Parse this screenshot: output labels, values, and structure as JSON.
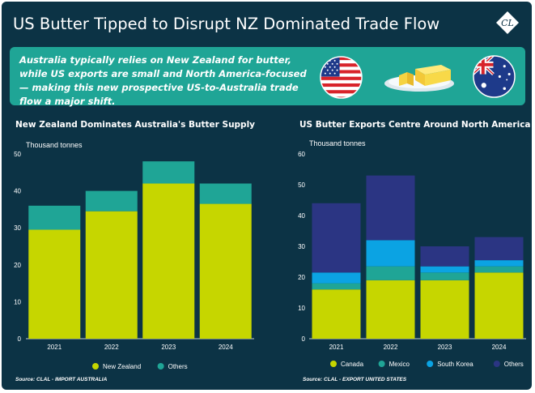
{
  "title": "US Butter Tipped to Disrupt NZ Dominated Trade Flow",
  "logo_text": "CL",
  "banner": {
    "text": "Australia typically relies on New Zealand for butter, while US exports are small and North America-focused — making this new prospective US-to-Australia trade flow a major shift.",
    "icons": [
      "us-flag-icon",
      "butter-icon",
      "australia-flag-icon"
    ]
  },
  "colors": {
    "background": "#0c3345",
    "banner": "#1fa596",
    "new_zealand": "#c6d600",
    "others_left": "#1fa596",
    "canada": "#c6d600",
    "mexico": "#1fa596",
    "south_korea": "#0ba3e3",
    "others_right": "#2b3583"
  },
  "chart_data": [
    {
      "type": "bar",
      "stacked": true,
      "title": "New Zealand Dominates Australia's Butter Supply",
      "ylabel": "Thousand tonnes",
      "ylim": [
        0,
        50
      ],
      "yticks": [
        0,
        10,
        20,
        30,
        40,
        50
      ],
      "categories": [
        "2021",
        "2022",
        "2023",
        "2024"
      ],
      "series": [
        {
          "name": "New Zealand",
          "color": "#c6d600",
          "values": [
            29.5,
            34.5,
            42,
            36.5
          ]
        },
        {
          "name": "Others",
          "color": "#1fa596",
          "values": [
            6.5,
            5.5,
            6,
            5.5
          ]
        }
      ],
      "legend": "bottom",
      "grid": false,
      "source": "Source: CLAL - IMPORT AUSTRALIA"
    },
    {
      "type": "bar",
      "stacked": true,
      "title": "US Butter Exports Centre Around North America",
      "ylabel": "Thousand tonnes",
      "ylim": [
        0,
        60
      ],
      "yticks": [
        0,
        10,
        20,
        30,
        40,
        50,
        60
      ],
      "categories": [
        "2021",
        "2022",
        "2023",
        "2024"
      ],
      "series": [
        {
          "name": "Canada",
          "color": "#c6d600",
          "values": [
            16,
            19,
            19,
            21.5
          ]
        },
        {
          "name": "Mexico",
          "color": "#1fa596",
          "values": [
            2,
            4.5,
            2.5,
            2
          ]
        },
        {
          "name": "South Korea",
          "color": "#0ba3e3",
          "values": [
            3.5,
            8.5,
            2,
            2
          ]
        },
        {
          "name": "Others",
          "color": "#2b3583",
          "values": [
            22.5,
            21,
            6.5,
            7.5
          ]
        }
      ],
      "legend": "bottom",
      "grid": false,
      "source": "Source: CLAL - EXPORT UNITED STATES"
    }
  ]
}
